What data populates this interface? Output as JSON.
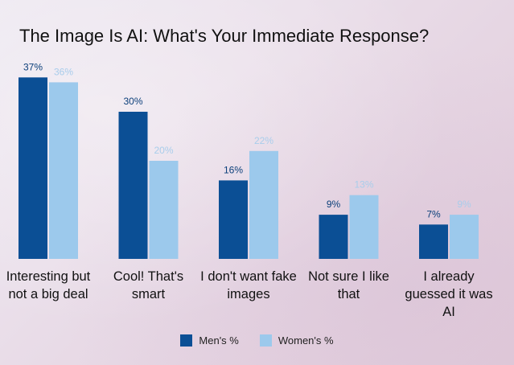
{
  "chart_data": {
    "type": "bar",
    "title": "The Image Is AI: What's Your Immediate Response?",
    "categories": [
      "Interesting but not a big deal",
      "Cool! That's smart",
      "I don't want fake images",
      "Not sure I like that",
      "I already guessed it was AI"
    ],
    "series": [
      {
        "name": "Men's %",
        "values": [
          37,
          30,
          16,
          9,
          7
        ],
        "labels": [
          "37%",
          "30%",
          "16%",
          "9%",
          "7%"
        ],
        "color": "#0b4f95"
      },
      {
        "name": "Women's %",
        "values": [
          36,
          20,
          22,
          13,
          9
        ],
        "labels": [
          "36%",
          "20%",
          "22%",
          "13%",
          "9%"
        ],
        "color": "#9cc9ec"
      }
    ],
    "ylim": [
      0,
      37
    ],
    "xlabel": "",
    "ylabel": "",
    "legend": "bottom-center"
  }
}
